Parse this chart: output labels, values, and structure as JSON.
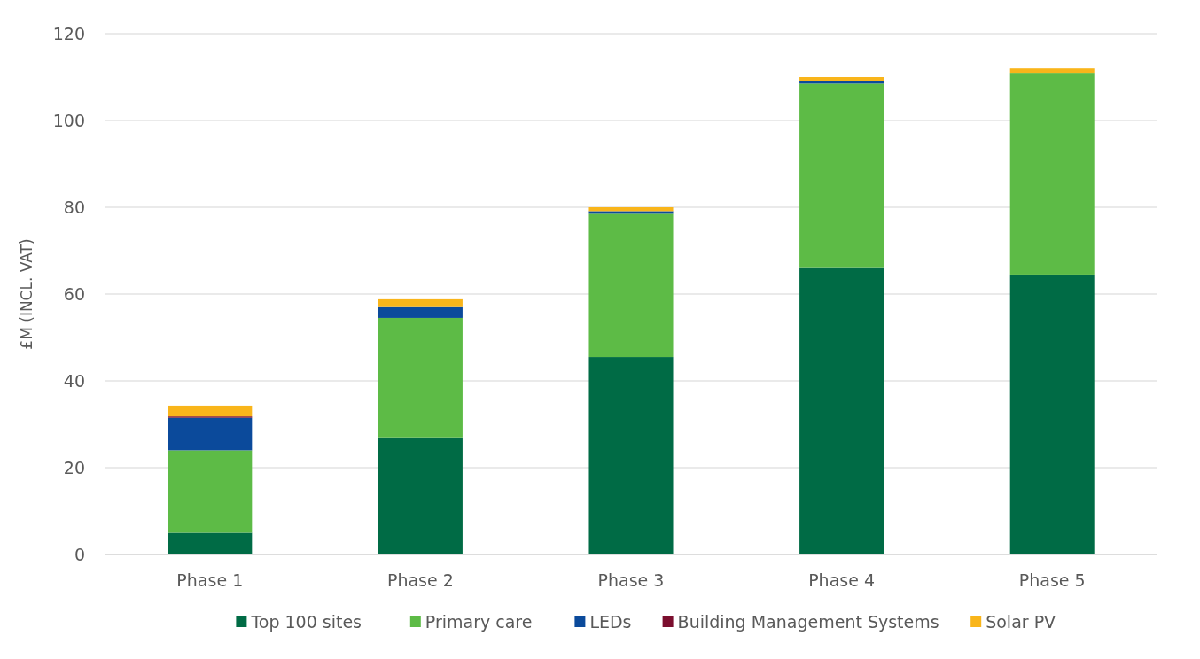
{
  "chart_data": {
    "type": "bar",
    "stacked": true,
    "ylabel": "£M (INCL. VAT)",
    "categories": [
      "Phase 1",
      "Phase 2",
      "Phase 3",
      "Phase 4",
      "Phase 5"
    ],
    "series": [
      {
        "name": "Top 100 sites",
        "color": "#006b45",
        "values": [
          5,
          27,
          45.5,
          66,
          64.5
        ]
      },
      {
        "name": "Primary care",
        "color": "#5dbb46",
        "values": [
          19,
          27.5,
          33,
          42.5,
          46.5
        ]
      },
      {
        "name": "LEDs",
        "color": "#0b4a9b",
        "values": [
          7.5,
          2.5,
          0.6,
          0.5,
          0
        ]
      },
      {
        "name": "Building Management Systems",
        "color": "#7b0e2e",
        "values": [
          0.3,
          0,
          0,
          0,
          0
        ]
      },
      {
        "name": "Solar PV",
        "color": "#f9b51a",
        "values": [
          2.5,
          1.8,
          0.9,
          1,
          1
        ]
      }
    ],
    "ylim": [
      0,
      120
    ],
    "yticks": [
      0,
      20,
      40,
      60,
      80,
      100,
      120
    ],
    "grid": "y",
    "legend": "bottom"
  }
}
